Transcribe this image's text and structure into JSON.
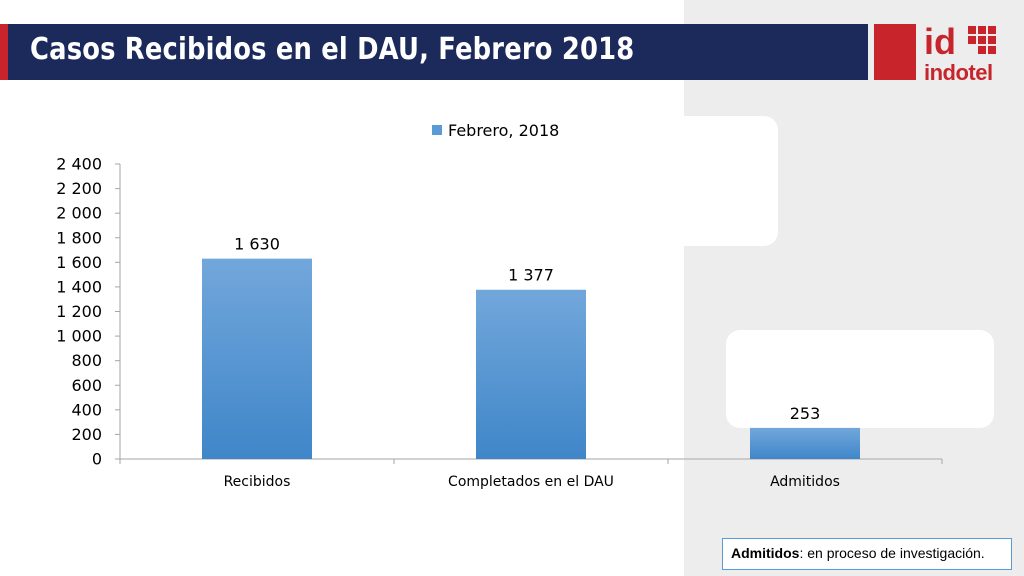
{
  "title": "Casos Recibidos en el DAU, Febrero 2018",
  "logo": {
    "mark": "id",
    "name": "indotel"
  },
  "note": {
    "label": "Admitidos",
    "text": ": en proceso de investigación."
  },
  "colors": {
    "bar": "#5b9bd5",
    "title_bg": "#1b2a5a",
    "accent": "#c8242b"
  },
  "chart_data": {
    "type": "bar",
    "title": "",
    "categories": [
      "Recibidos",
      "Completados en el DAU",
      "Admitidos"
    ],
    "series": [
      {
        "name": "Febrero, 2018",
        "values": [
          1630,
          1377,
          253
        ],
        "value_labels": [
          "1 630",
          "1 377",
          "253"
        ]
      }
    ],
    "xlabel": "",
    "ylabel": "",
    "ylim": [
      0,
      2400
    ],
    "yticks": [
      0,
      200,
      400,
      600,
      800,
      1000,
      1200,
      1400,
      1600,
      1800,
      2000,
      2200,
      2400
    ],
    "ytick_labels": [
      "0",
      "200",
      "400",
      "600",
      "800",
      "1 000",
      "1 200",
      "1 400",
      "1 600",
      "1 800",
      "2 000",
      "2 200",
      "2 400"
    ],
    "grid": false,
    "legend_position": "top"
  }
}
